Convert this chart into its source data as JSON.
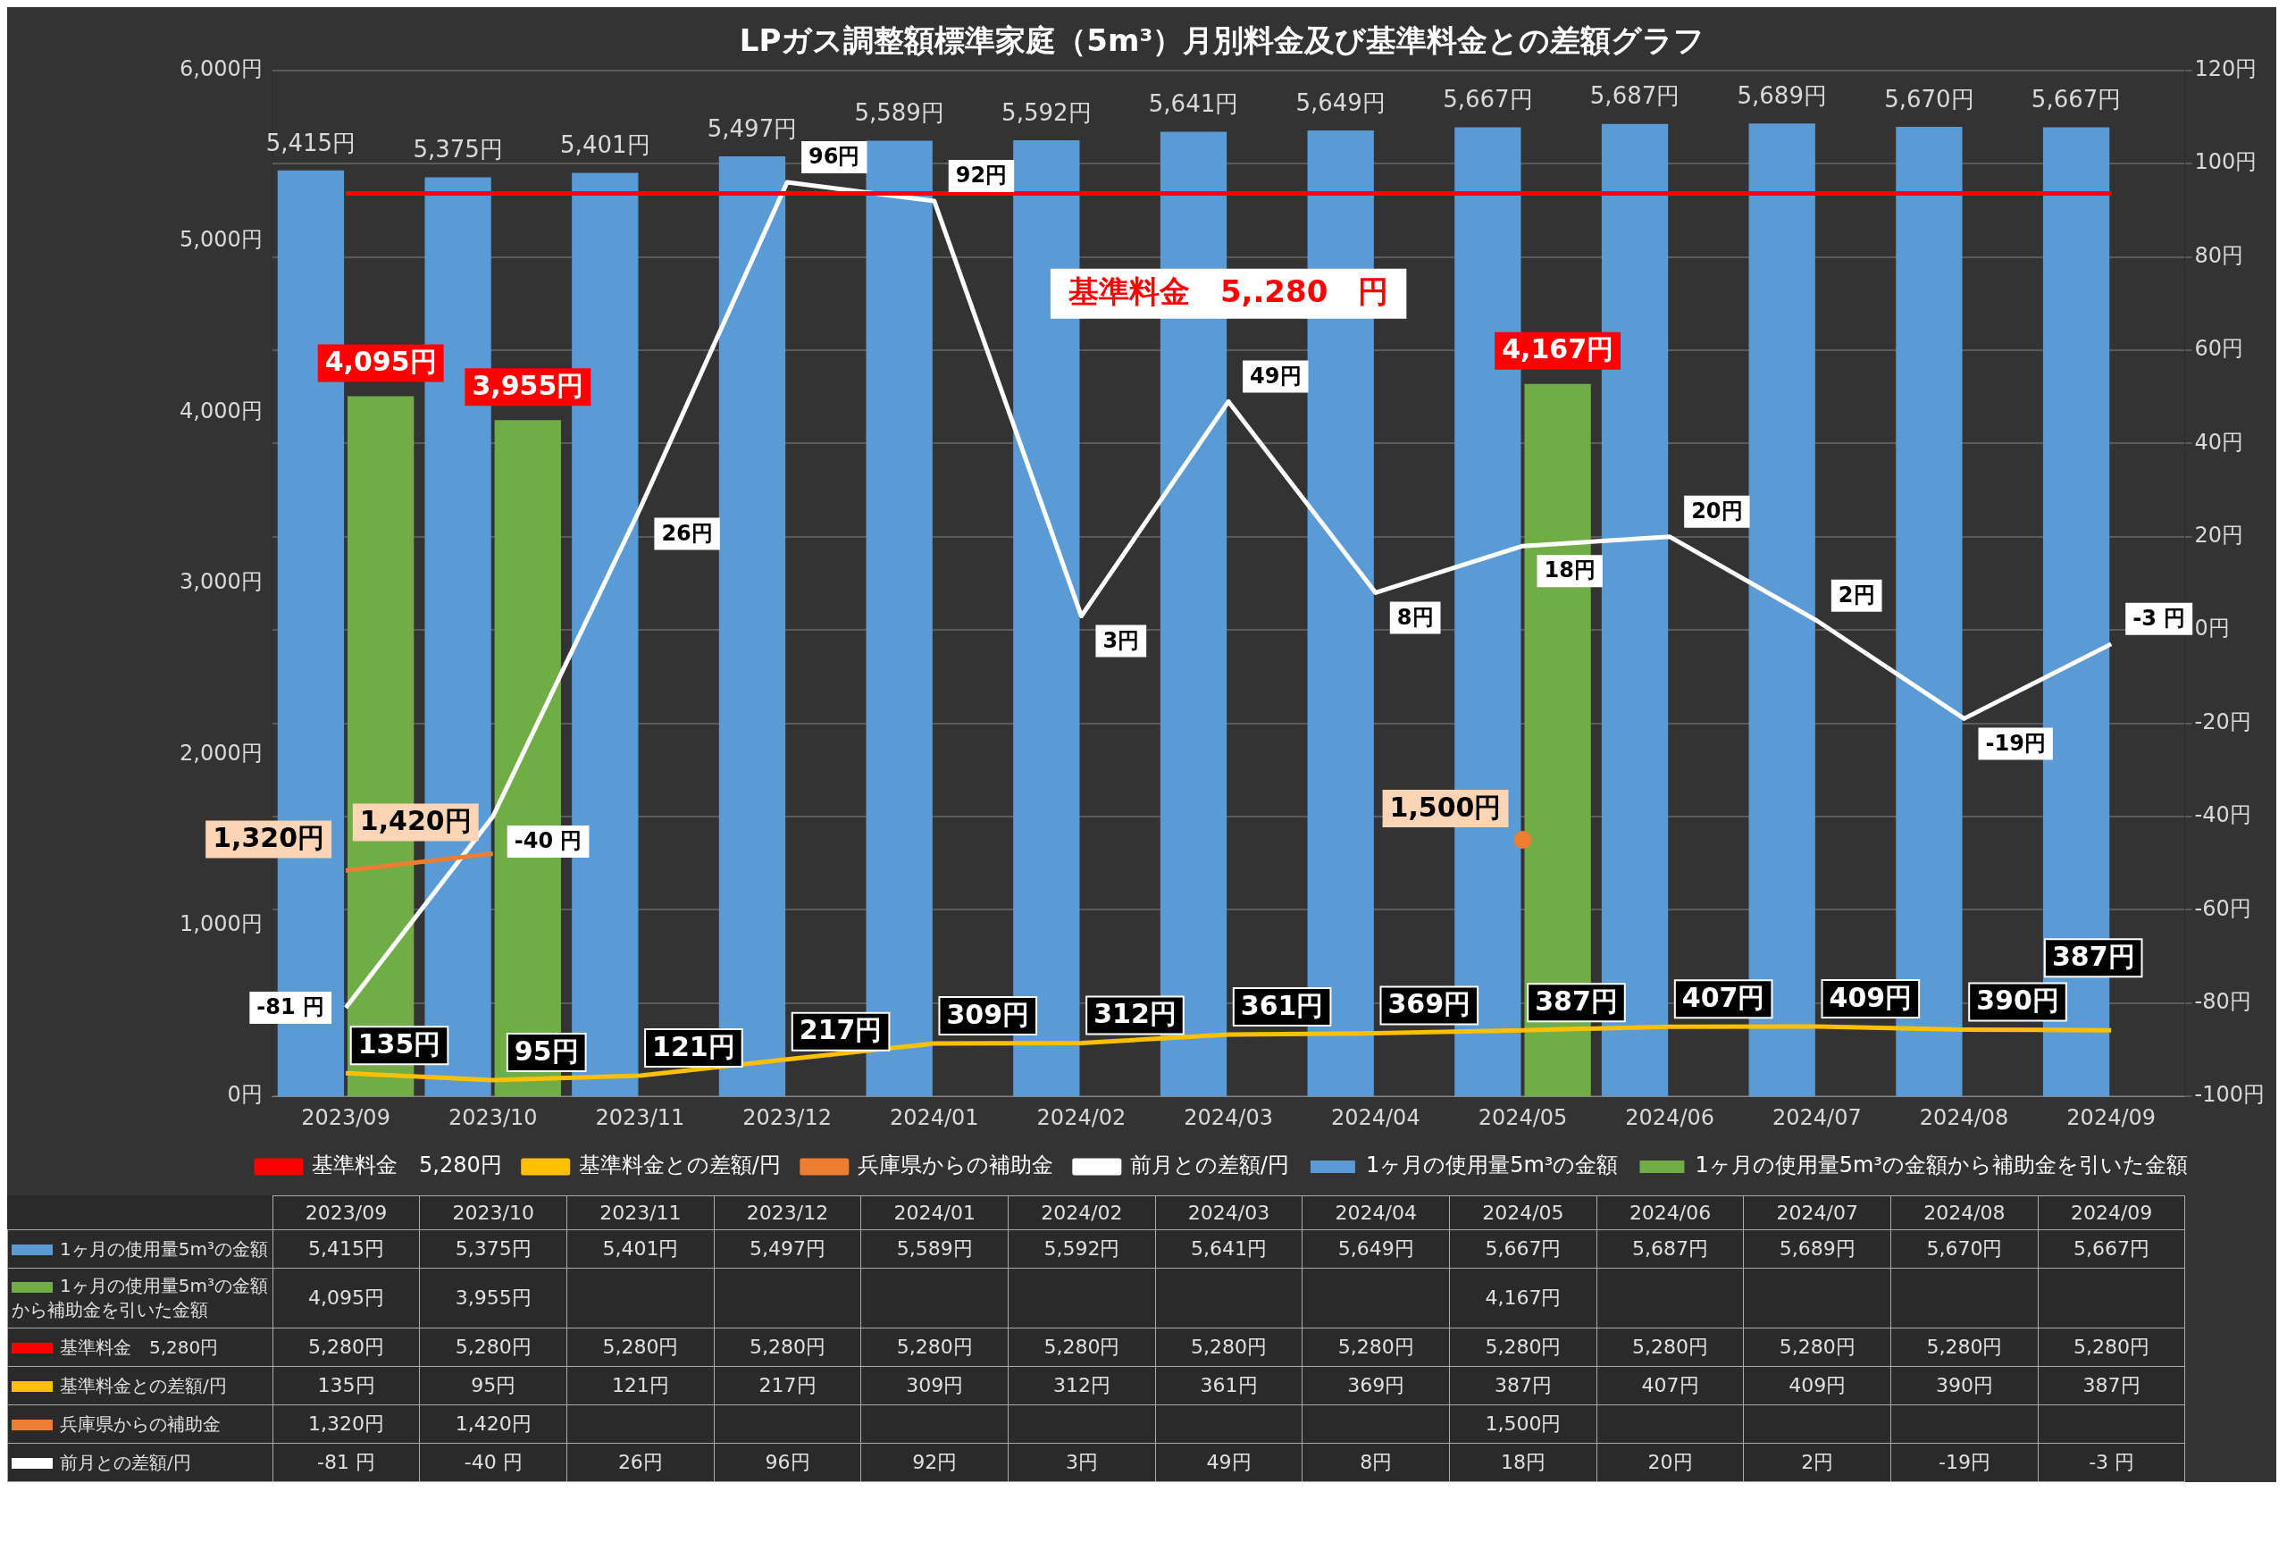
{
  "chart_data": {
    "type": "bar",
    "title": "LPガス調整額標準家庭（5m³）月別料金及び基準料金との差額グラフ",
    "categories": [
      "2023/09",
      "2023/10",
      "2023/11",
      "2023/12",
      "2024/01",
      "2024/02",
      "2024/03",
      "2024/04",
      "2024/05",
      "2024/06",
      "2024/07",
      "2024/08",
      "2024/09"
    ],
    "series": [
      {
        "name": "1ヶ月の使用量5m³の金額",
        "color": "#5b9bd5",
        "values": [
          5415,
          5375,
          5401,
          5497,
          5589,
          5592,
          5641,
          5649,
          5667,
          5687,
          5689,
          5670,
          5667
        ],
        "value_labels": [
          "5,415円",
          "5,375円",
          "5,401円",
          "5,497円",
          "5,589円",
          "5,592円",
          "5,641円",
          "5,649円",
          "5,667円",
          "5,687円",
          "5,689円",
          "5,670円",
          "5,667円"
        ]
      },
      {
        "name": "1ヶ月の使用量5m³の金額から補助金を引いた金額",
        "color": "#70ad47",
        "values": [
          4095,
          3955,
          null,
          null,
          null,
          null,
          null,
          null,
          4167,
          null,
          null,
          null,
          null
        ],
        "value_labels": [
          "4,095円",
          "3,955円",
          null,
          null,
          null,
          null,
          null,
          null,
          "4,167円",
          null,
          null,
          null,
          null
        ]
      },
      {
        "name": "基準料金　5,280円",
        "type": "line",
        "color": "#ff0000",
        "values": [
          5280,
          5280,
          5280,
          5280,
          5280,
          5280,
          5280,
          5280,
          5280,
          5280,
          5280,
          5280,
          5280
        ],
        "value_labels": [
          "5,280円",
          "5,280円",
          "5,280円",
          "5,280円",
          "5,280円",
          "5,280円",
          "5,280円",
          "5,280円",
          "5,280円",
          "5,280円",
          "5,280円",
          "5,280円",
          "5,280円"
        ]
      },
      {
        "name": "基準料金との差額/円",
        "type": "line",
        "color": "#ffc000",
        "values": [
          135,
          95,
          121,
          217,
          309,
          312,
          361,
          369,
          387,
          407,
          409,
          390,
          387
        ],
        "value_labels": [
          "135円",
          "95円",
          "121円",
          "217円",
          "309円",
          "312円",
          "361円",
          "369円",
          "387円",
          "407円",
          "409円",
          "390円",
          "387円"
        ]
      },
      {
        "name": "兵庫県からの補助金",
        "type": "line",
        "color": "#ed7d31",
        "values": [
          1320,
          1420,
          null,
          null,
          null,
          null,
          null,
          null,
          1500,
          null,
          null,
          null,
          null
        ],
        "value_labels": [
          "1,320円",
          "1,420円",
          null,
          null,
          null,
          null,
          null,
          null,
          "1,500円",
          null,
          null,
          null,
          null
        ]
      },
      {
        "name": "前月との差額/円",
        "type": "line",
        "axis": "y2",
        "color": "#ffffff",
        "values": [
          -81,
          -40,
          26,
          96,
          92,
          3,
          49,
          8,
          18,
          20,
          2,
          -19,
          -3
        ],
        "value_labels": [
          "-81 円",
          "-40 円",
          "26円",
          "96円",
          "92円",
          "3円",
          "49円",
          "8円",
          "18円",
          "20円",
          "2円",
          "-19円",
          "-3 円"
        ]
      }
    ],
    "ylim": [
      0,
      6000
    ],
    "yticks": [
      {
        "value": 0,
        "label": "0円"
      },
      {
        "value": 1000,
        "label": "1,000円"
      },
      {
        "value": 2000,
        "label": "2,000円"
      },
      {
        "value": 3000,
        "label": "3,000円"
      },
      {
        "value": 4000,
        "label": "4,000円"
      },
      {
        "value": 5000,
        "label": "5,000円"
      },
      {
        "value": 6000,
        "label": "6,000円"
      }
    ],
    "y2lim": [
      -100,
      120
    ],
    "y2ticks": [
      {
        "value": -100,
        "label": "-100円"
      },
      {
        "value": -80,
        "label": "-80円"
      },
      {
        "value": -60,
        "label": "-60円"
      },
      {
        "value": -40,
        "label": "-40円"
      },
      {
        "value": -20,
        "label": "-20円"
      },
      {
        "value": 0,
        "label": "0円"
      },
      {
        "value": 20,
        "label": "20円"
      },
      {
        "value": 40,
        "label": "40円"
      },
      {
        "value": 60,
        "label": "60円"
      },
      {
        "value": 80,
        "label": "80円"
      },
      {
        "value": 100,
        "label": "100円"
      },
      {
        "value": 120,
        "label": "120円"
      }
    ],
    "grid": "y",
    "legend": "bottom",
    "data_labels": true,
    "annotations": [
      "基準料金　5,.280　円"
    ]
  }
}
